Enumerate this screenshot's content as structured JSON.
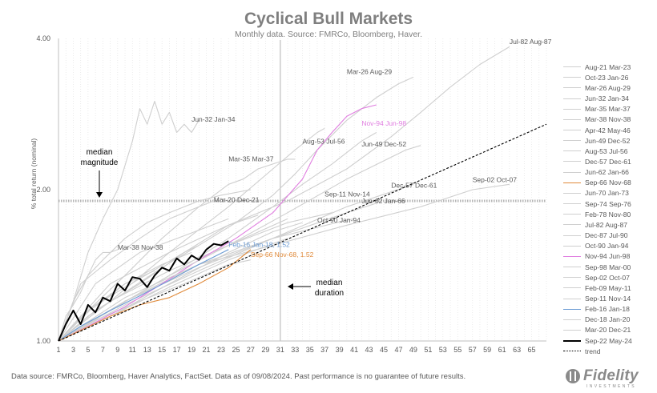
{
  "chart_data": {
    "type": "line",
    "title": "Cyclical Bull Markets",
    "subtitle": "Monthly data.  Source: FMRCo, Bloomberg, Haver.",
    "ylabel": "% total return (nominal)",
    "xlabel": "",
    "y_scale": "log",
    "ylim": [
      1.0,
      4.0
    ],
    "xlim": [
      1,
      67
    ],
    "y_ticks": [
      "4.00",
      "2.00",
      "1.00"
    ],
    "x_ticks": [
      "1",
      "3",
      "5",
      "7",
      "9",
      "11",
      "13",
      "15",
      "17",
      "19",
      "21",
      "23",
      "25",
      "27",
      "29",
      "31",
      "33",
      "35",
      "37",
      "39",
      "41",
      "43",
      "45",
      "47",
      "49",
      "51",
      "53",
      "55",
      "57",
      "59",
      "61",
      "63",
      "65"
    ],
    "grid": "vertical dotted",
    "legend_position": "right",
    "median_magnitude": {
      "label": "median\nmagnitude",
      "value": 1.9
    },
    "median_duration": {
      "label": "median\nduration",
      "value": 31
    },
    "series": [
      {
        "name": "Aug-21 Mar-23",
        "color": "#cfcfcf",
        "width": 1.1,
        "x": [
          1,
          6,
          12,
          18,
          20
        ],
        "y": [
          1.0,
          1.18,
          1.33,
          1.5,
          1.55
        ]
      },
      {
        "name": "Oct-23 Jan-26",
        "color": "#cfcfcf",
        "width": 1.1,
        "x": [
          1,
          6,
          12,
          18,
          24,
          28
        ],
        "y": [
          1.0,
          1.15,
          1.3,
          1.5,
          1.7,
          1.78
        ]
      },
      {
        "name": "Mar-26 Aug-29",
        "color": "#cfcfcf",
        "width": 1.1,
        "x": [
          1,
          5,
          10,
          15,
          20,
          25,
          30,
          33,
          36,
          40,
          44,
          47,
          49
        ],
        "y": [
          1.0,
          1.12,
          1.25,
          1.4,
          1.55,
          1.72,
          1.95,
          2.15,
          2.4,
          2.75,
          3.05,
          3.25,
          3.35
        ]
      },
      {
        "name": "Jun-32 Jan-34",
        "color": "#cfcfcf",
        "width": 1.1,
        "x": [
          1,
          3,
          5,
          7,
          9,
          11,
          12,
          13,
          14,
          15,
          16,
          17,
          18,
          19,
          20
        ],
        "y": [
          1.0,
          1.2,
          1.5,
          1.75,
          2.0,
          2.5,
          2.9,
          2.7,
          3.0,
          2.7,
          2.85,
          2.6,
          2.7,
          2.6,
          2.75
        ]
      },
      {
        "name": "Mar-35 Mar-37",
        "color": "#cfcfcf",
        "width": 1.1,
        "x": [
          1,
          5,
          10,
          15,
          20,
          24,
          26,
          28,
          30,
          32,
          33
        ],
        "y": [
          1.0,
          1.15,
          1.35,
          1.6,
          1.85,
          2.05,
          2.1,
          2.2,
          2.25,
          2.3,
          2.3
        ]
      },
      {
        "name": "Mar-38 Nov-38",
        "color": "#cfcfcf",
        "width": 1.1,
        "x": [
          1,
          2,
          3,
          4,
          5,
          6,
          7,
          8,
          9
        ],
        "y": [
          1.0,
          1.12,
          1.18,
          1.25,
          1.35,
          1.45,
          1.5,
          1.5,
          1.52
        ]
      },
      {
        "name": "Apr-42 May-46",
        "color": "#cfcfcf",
        "width": 1.1,
        "x": [
          1,
          8,
          16,
          24,
          32,
          40,
          48,
          50
        ],
        "y": [
          1.0,
          1.15,
          1.35,
          1.55,
          1.8,
          2.1,
          2.4,
          2.45
        ]
      },
      {
        "name": "Jun-49 Dec-52",
        "color": "#cfcfcf",
        "width": 1.1,
        "x": [
          1,
          8,
          16,
          24,
          30,
          34,
          38,
          42,
          44
        ],
        "y": [
          1.0,
          1.15,
          1.35,
          1.6,
          1.85,
          2.05,
          2.25,
          2.5,
          2.6
        ]
      },
      {
        "name": "Aug-53 Jul-56",
        "color": "#cfcfcf",
        "width": 1.1,
        "x": [
          1,
          8,
          16,
          24,
          30,
          33,
          36,
          37
        ],
        "y": [
          1.0,
          1.2,
          1.5,
          1.85,
          2.2,
          2.4,
          2.6,
          2.65
        ]
      },
      {
        "name": "Dec-57 Dec-61",
        "color": "#cfcfcf",
        "width": 1.1,
        "x": [
          1,
          10,
          20,
          30,
          40,
          49
        ],
        "y": [
          1.0,
          1.18,
          1.38,
          1.6,
          1.85,
          2.05
        ]
      },
      {
        "name": "Jun-62 Jan-66",
        "color": "#cfcfcf",
        "width": 1.1,
        "x": [
          1,
          10,
          20,
          30,
          40,
          44
        ],
        "y": [
          1.0,
          1.2,
          1.4,
          1.6,
          1.8,
          1.88
        ]
      },
      {
        "name": "Sep-66 Nov-68",
        "color": "#cfcfcf",
        "width": 1.1,
        "x": [
          1,
          6,
          12,
          18,
          24,
          27
        ],
        "y": [
          1.0,
          1.1,
          1.2,
          1.3,
          1.42,
          1.45
        ]
      },
      {
        "name": "Jun-70 Jan-73",
        "color": "#cfcfcf",
        "width": 1.1,
        "x": [
          1,
          8,
          16,
          24,
          32
        ],
        "y": [
          1.0,
          1.2,
          1.38,
          1.55,
          1.75
        ]
      },
      {
        "name": "Sep-74 Sep-76",
        "color": "#cfcfcf",
        "width": 1.1,
        "x": [
          1,
          6,
          12,
          18,
          24
        ],
        "y": [
          1.0,
          1.3,
          1.5,
          1.62,
          1.75
        ]
      },
      {
        "name": "Feb-78 Nov-80",
        "color": "#cfcfcf",
        "width": 1.1,
        "x": [
          1,
          8,
          16,
          24,
          30,
          34
        ],
        "y": [
          1.0,
          1.12,
          1.3,
          1.5,
          1.65,
          1.72
        ]
      },
      {
        "name": "Jul-82 Aug-87",
        "color": "#cfcfcf",
        "width": 1.1,
        "x": [
          1,
          8,
          16,
          24,
          32,
          40,
          46,
          50,
          54,
          58,
          62
        ],
        "y": [
          1.0,
          1.3,
          1.5,
          1.7,
          1.9,
          2.2,
          2.55,
          2.85,
          3.2,
          3.55,
          3.85
        ]
      },
      {
        "name": "Dec-87 Jul-90",
        "color": "#cfcfcf",
        "width": 1.1,
        "x": [
          1,
          8,
          16,
          24,
          32
        ],
        "y": [
          1.0,
          1.12,
          1.28,
          1.45,
          1.6
        ]
      },
      {
        "name": "Oct-90 Jan-94",
        "color": "#cfcfcf",
        "width": 1.1,
        "x": [
          1,
          10,
          20,
          30,
          40,
          41
        ],
        "y": [
          1.0,
          1.2,
          1.42,
          1.6,
          1.74,
          1.75
        ]
      },
      {
        "name": "Nov-94 Jun-98",
        "color": "#e07ee0",
        "width": 1.1,
        "x": [
          1,
          5,
          10,
          15,
          20,
          25,
          30,
          34,
          36,
          38,
          40,
          42,
          44
        ],
        "y": [
          1.0,
          1.07,
          1.17,
          1.3,
          1.45,
          1.6,
          1.8,
          2.1,
          2.4,
          2.6,
          2.8,
          2.9,
          2.95
        ]
      },
      {
        "name": "Sep-98 Mar-00",
        "color": "#cfcfcf",
        "width": 1.1,
        "x": [
          1,
          5,
          10,
          15,
          19
        ],
        "y": [
          1.0,
          1.15,
          1.3,
          1.42,
          1.5
        ]
      },
      {
        "name": "Sep-02 Oct-07",
        "color": "#cfcfcf",
        "width": 1.1,
        "x": [
          1,
          10,
          20,
          30,
          40,
          50,
          57,
          62
        ],
        "y": [
          1.0,
          1.22,
          1.42,
          1.55,
          1.7,
          1.85,
          2.0,
          2.05
        ]
      },
      {
        "name": "Feb-09 May-11",
        "color": "#cfcfcf",
        "width": 1.1,
        "x": [
          1,
          3,
          5,
          7,
          10,
          13,
          16,
          20,
          23,
          27
        ],
        "y": [
          1.0,
          1.2,
          1.35,
          1.45,
          1.6,
          1.72,
          1.8,
          1.9,
          1.95,
          2.0
        ]
      },
      {
        "name": "Sep-11 Nov-14",
        "color": "#cfcfcf",
        "width": 1.1,
        "x": [
          1,
          8,
          16,
          24,
          32,
          38
        ],
        "y": [
          1.0,
          1.15,
          1.35,
          1.55,
          1.72,
          1.8
        ]
      },
      {
        "name": "Feb-16 Jan-18",
        "color": "#6a9bd4",
        "width": 1.1,
        "x": [
          1,
          4,
          8,
          12,
          16,
          20,
          24
        ],
        "y": [
          1.0,
          1.07,
          1.15,
          1.23,
          1.32,
          1.42,
          1.52
        ]
      },
      {
        "name": "Dec-18 Jan-20",
        "color": "#cfcfcf",
        "width": 1.1,
        "x": [
          1,
          4,
          7,
          10,
          13,
          14
        ],
        "y": [
          1.0,
          1.12,
          1.2,
          1.3,
          1.36,
          1.38
        ]
      },
      {
        "name": "Mar-20 Dec-21",
        "color": "#cfcfcf",
        "width": 1.1,
        "x": [
          1,
          4,
          8,
          12,
          16,
          20,
          22
        ],
        "y": [
          1.0,
          1.3,
          1.45,
          1.6,
          1.75,
          1.85,
          1.9
        ]
      },
      {
        "name": "Sep-66 Nov-68",
        "color": "#e08a3a",
        "width": 1.1,
        "x": [
          1,
          4,
          8,
          12,
          16,
          20,
          24,
          27
        ],
        "y": [
          1.0,
          1.05,
          1.12,
          1.18,
          1.22,
          1.3,
          1.4,
          1.52
        ]
      },
      {
        "name": "Sep-22 May-24",
        "color": "#000000",
        "width": 2.0,
        "x": [
          1,
          2,
          3,
          4,
          5,
          6,
          7,
          8,
          9,
          10,
          11,
          12,
          13,
          14,
          15,
          16,
          17,
          18,
          19,
          20,
          21,
          22,
          23,
          24
        ],
        "y": [
          1.0,
          1.08,
          1.15,
          1.08,
          1.18,
          1.14,
          1.22,
          1.2,
          1.3,
          1.26,
          1.34,
          1.33,
          1.28,
          1.35,
          1.4,
          1.38,
          1.46,
          1.42,
          1.48,
          1.45,
          1.52,
          1.56,
          1.55,
          1.58
        ]
      },
      {
        "name": "trend",
        "color": "#000000",
        "width": 1.1,
        "dash": "3,2",
        "x": [
          1,
          67
        ],
        "y": [
          1.0,
          2.7
        ]
      }
    ],
    "legend_entries": [
      {
        "name": "Aug-21 Mar-23",
        "color": "#cfcfcf"
      },
      {
        "name": "Oct-23 Jan-26",
        "color": "#cfcfcf"
      },
      {
        "name": "Mar-26 Aug-29",
        "color": "#cfcfcf"
      },
      {
        "name": "Jun-32 Jan-34",
        "color": "#cfcfcf"
      },
      {
        "name": "Mar-35 Mar-37",
        "color": "#cfcfcf"
      },
      {
        "name": "Mar-38 Nov-38",
        "color": "#cfcfcf"
      },
      {
        "name": "Apr-42 May-46",
        "color": "#cfcfcf"
      },
      {
        "name": "Jun-49 Dec-52",
        "color": "#cfcfcf"
      },
      {
        "name": "Aug-53 Jul-56",
        "color": "#cfcfcf"
      },
      {
        "name": "Dec-57 Dec-61",
        "color": "#cfcfcf"
      },
      {
        "name": "Jun-62 Jan-66",
        "color": "#cfcfcf"
      },
      {
        "name": "Sep-66 Nov-68",
        "color": "#e08a3a"
      },
      {
        "name": "Jun-70 Jan-73",
        "color": "#cfcfcf"
      },
      {
        "name": "Sep-74 Sep-76",
        "color": "#cfcfcf"
      },
      {
        "name": "Feb-78 Nov-80",
        "color": "#cfcfcf"
      },
      {
        "name": "Jul-82 Aug-87",
        "color": "#cfcfcf"
      },
      {
        "name": "Dec-87 Jul-90",
        "color": "#cfcfcf"
      },
      {
        "name": "Oct-90 Jan-94",
        "color": "#cfcfcf"
      },
      {
        "name": "Nov-94 Jun-98",
        "color": "#e07ee0"
      },
      {
        "name": "Sep-98 Mar-00",
        "color": "#cfcfcf"
      },
      {
        "name": "Sep-02 Oct-07",
        "color": "#cfcfcf"
      },
      {
        "name": "Feb-09 May-11",
        "color": "#cfcfcf"
      },
      {
        "name": "Sep-11 Nov-14",
        "color": "#cfcfcf"
      },
      {
        "name": "Feb-16 Jan-18",
        "color": "#6a9bd4"
      },
      {
        "name": "Dec-18 Jan-20",
        "color": "#cfcfcf"
      },
      {
        "name": "Mar-20 Dec-21",
        "color": "#cfcfcf"
      },
      {
        "name": "Sep-22 May-24",
        "color": "#000000",
        "bold": true
      },
      {
        "name": "trend",
        "color": "#000000",
        "dashed": true
      }
    ],
    "annotations": [
      {
        "text": "Jul-82 Aug-87",
        "x": 62,
        "y": 3.9,
        "color": "#595959"
      },
      {
        "text": "Mar-26 Aug-29",
        "x": 40,
        "y": 3.4,
        "color": "#595959"
      },
      {
        "text": "Jun-32 Jan-34",
        "x": 19,
        "y": 2.73,
        "color": "#595959"
      },
      {
        "text": "Nov-94 Jun-98",
        "x": 42,
        "y": 2.68,
        "color": "#e07ee0"
      },
      {
        "text": "Aug-53 Jul-56",
        "x": 34,
        "y": 2.47,
        "color": "#595959"
      },
      {
        "text": "Jun-49 Dec-52",
        "x": 42,
        "y": 2.44,
        "color": "#595959"
      },
      {
        "text": "Mar-35 Mar-37",
        "x": 24,
        "y": 2.28,
        "color": "#595959"
      },
      {
        "text": "Dec-57 Dec-61",
        "x": 46,
        "y": 2.02,
        "color": "#595959"
      },
      {
        "text": "Sep-02 Oct-07",
        "x": 57,
        "y": 2.07,
        "color": "#595959"
      },
      {
        "text": "Sep-11 Nov-14",
        "x": 37,
        "y": 1.94,
        "color": "#595959"
      },
      {
        "text": "Jun-62 Jan-66",
        "x": 42,
        "y": 1.88,
        "color": "#595959"
      },
      {
        "text": "Mar-20 Dec-21",
        "x": 22,
        "y": 1.89,
        "color": "#595959"
      },
      {
        "text": "Oct-90 Jan-94",
        "x": 36,
        "y": 1.72,
        "color": "#595959"
      },
      {
        "text": "Mar-38 Nov-38",
        "x": 9,
        "y": 1.52,
        "color": "#595959"
      },
      {
        "text": "Feb-16 Jan-18, 1.52",
        "x": 24,
        "y": 1.54,
        "color": "#6a9bd4"
      },
      {
        "text": "Sep-66 Nov-68, 1.52",
        "x": 27,
        "y": 1.47,
        "color": "#e08a3a"
      }
    ]
  },
  "footer": "Data source: FMRCo, Bloomberg, Haver Analytics, FactSet. Data as of 09/08/2024. Past performance is no guarantee of future results.",
  "logo": {
    "text": "Fidelity",
    "sub": "INVESTMENTS"
  }
}
